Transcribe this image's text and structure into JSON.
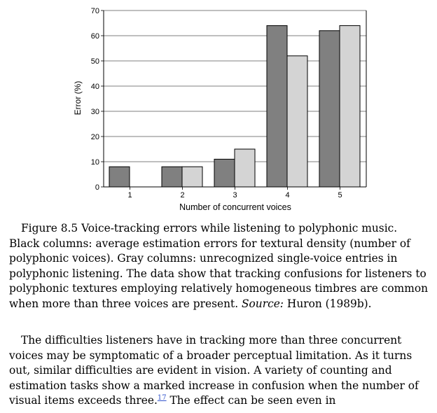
{
  "chart_data": {
    "type": "bar",
    "categories": [
      "1",
      "2",
      "3",
      "4",
      "5"
    ],
    "series": [
      {
        "color": "#808080",
        "values": [
          8,
          8,
          11,
          64,
          62
        ]
      },
      {
        "color": "#d4d4d4",
        "values": [
          0,
          8,
          15,
          52,
          64
        ]
      }
    ],
    "xlabel": "Number of concurrent voices",
    "ylabel": "Error (%)",
    "ylim": [
      0,
      70
    ],
    "yticks": [
      0,
      10,
      20,
      30,
      40,
      50,
      60,
      70
    ],
    "grid": "horizontal"
  },
  "caption": {
    "text": "Figure 8.5 Voice-tracking errors while listening to polyphonic music. Black columns: average estimation errors for textural density (number of polyphonic voices). Gray columns: unrecognized single-voice entries in polyphonic listening. The data show that tracking confusions for listeners to polyphonic textures employing relatively homogeneous timbres are common when more than three voices are present. ",
    "source_label": "Source:",
    "source_ref": " Huron (1989b)."
  },
  "body": {
    "text_before": "The difficulties listeners have in tracking more than three concurrent voices may be symptomatic of a broader perceptual limitation. As it turns out, similar difficulties are evident in vision. A variety of counting and estimation tasks show a marked increase in confusion when the number of visual items exceeds three.",
    "footnote": "17",
    "text_after": " The effect can be seen even in"
  }
}
